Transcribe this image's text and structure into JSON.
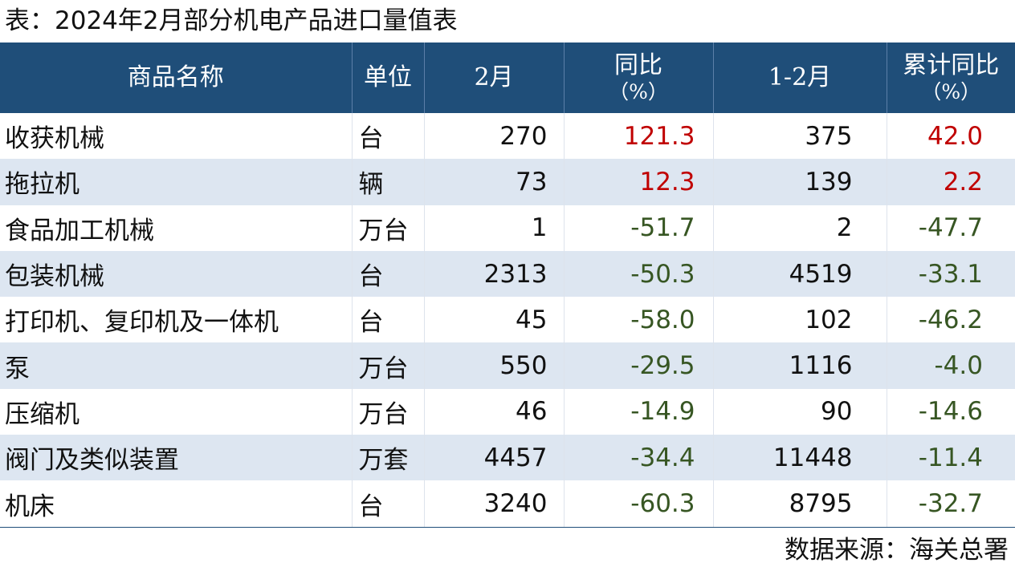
{
  "title": "表：2024年2月部分机电产品进口量值表",
  "source": "数据来源：海关总署",
  "colors": {
    "header_bg": "#1f4e79",
    "stripe": "#dde6f1",
    "positive": "#c00000",
    "negative": "#375623"
  },
  "chart_data": {
    "type": "table",
    "columns": [
      {
        "label": "商品名称",
        "sub": ""
      },
      {
        "label": "单位",
        "sub": ""
      },
      {
        "label": "2月",
        "sub": ""
      },
      {
        "label": "同比",
        "sub": "（%）"
      },
      {
        "label": "1-2月",
        "sub": ""
      },
      {
        "label": "累计同比",
        "sub": "（%）"
      }
    ],
    "rows": [
      {
        "name": "收获机械",
        "unit": "台",
        "feb": "270",
        "yoy": "121.3",
        "ytd": "375",
        "ytd_yoy": "42.0"
      },
      {
        "name": "拖拉机",
        "unit": "辆",
        "feb": "73",
        "yoy": "12.3",
        "ytd": "139",
        "ytd_yoy": "2.2"
      },
      {
        "name": "食品加工机械",
        "unit": "万台",
        "feb": "1",
        "yoy": "-51.7",
        "ytd": "2",
        "ytd_yoy": "-47.7"
      },
      {
        "name": "包装机械",
        "unit": "台",
        "feb": "2313",
        "yoy": "-50.3",
        "ytd": "4519",
        "ytd_yoy": "-33.1"
      },
      {
        "name": "打印机、复印机及一体机",
        "unit": "台",
        "feb": "45",
        "yoy": "-58.0",
        "ytd": "102",
        "ytd_yoy": "-46.2"
      },
      {
        "name": "泵",
        "unit": "万台",
        "feb": "550",
        "yoy": "-29.5",
        "ytd": "1116",
        "ytd_yoy": "-4.0"
      },
      {
        "name": "压缩机",
        "unit": "万台",
        "feb": "46",
        "yoy": "-14.9",
        "ytd": "90",
        "ytd_yoy": "-14.6"
      },
      {
        "name": "阀门及类似装置",
        "unit": "万套",
        "feb": "4457",
        "yoy": "-34.4",
        "ytd": "11448",
        "ytd_yoy": "-11.4"
      },
      {
        "name": "机床",
        "unit": "台",
        "feb": "3240",
        "yoy": "-60.3",
        "ytd": "8795",
        "ytd_yoy": "-32.7"
      }
    ]
  }
}
